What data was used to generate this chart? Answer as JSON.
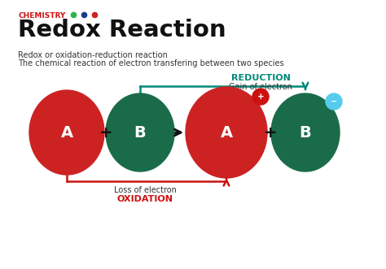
{
  "title": "Redox Reaction",
  "chemistry_label": "CHEMISTRY",
  "dot_colors": [
    "#2db34a",
    "#1a3a8f",
    "#cc2222"
  ],
  "subtitle1": "Redox or oxidation-reduction reaction",
  "subtitle2": "The chemical reaction of electron transfering between two species",
  "reduction_label": "REDUCTION",
  "reduction_sublabel": "Gain of electron",
  "oxidation_label": "OXIDATION",
  "oxidation_sublabel": "Loss of electron",
  "reduction_color": "#00897b",
  "oxidation_color": "#cc1111",
  "ball_A_color": "#cc2222",
  "ball_B_color": "#1a6b4a",
  "ball_A2_color": "#cc2222",
  "ball_B2_color": "#1a6b4a",
  "plus_ball_color": "#cc1111",
  "minus_ball_color": "#55ccee",
  "ball_label_color": "#ffffff",
  "arrow_color": "#111111",
  "bg_color": "#ffffff",
  "figsize": [
    4.74,
    3.31
  ],
  "dpi": 100
}
